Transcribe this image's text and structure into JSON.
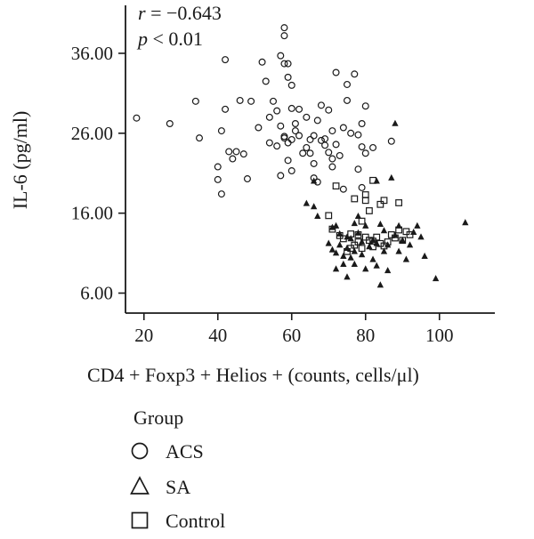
{
  "chart_data": {
    "type": "scatter",
    "title": "",
    "xlabel": "CD4 + Foxp3 + Helios + (counts, cells/μl)",
    "ylabel": "IL-6 (pg/ml)",
    "xlim": [
      15,
      115
    ],
    "ylim": [
      3.5,
      42.0
    ],
    "x_ticks": [
      20,
      40,
      60,
      80,
      100
    ],
    "y_ticks": [
      6.0,
      16.0,
      26.0,
      36.0
    ],
    "y_tick_labels": [
      "6.00",
      "16.00",
      "26.00",
      "36.00"
    ],
    "grid": false,
    "legend_position": "bottom-left",
    "annotation": {
      "r_symbol": "r",
      "r_value": " = −0.643",
      "p_symbol": "p",
      "p_value": " < 0.01"
    },
    "legend": {
      "title": "Group",
      "entries": [
        {
          "label": "ACS",
          "marker": "circle"
        },
        {
          "label": "SA",
          "marker": "triangle"
        },
        {
          "label": "Control",
          "marker": "square"
        }
      ]
    },
    "series": [
      {
        "name": "ACS",
        "marker": "circle",
        "color": "#1a1a1a",
        "points": [
          [
            18,
            27.9
          ],
          [
            27,
            27.2
          ],
          [
            34,
            30.0
          ],
          [
            35,
            25.4
          ],
          [
            40,
            21.8
          ],
          [
            40,
            20.2
          ],
          [
            41,
            18.4
          ],
          [
            41,
            26.3
          ],
          [
            42,
            35.2
          ],
          [
            42,
            29.0
          ],
          [
            43,
            23.7
          ],
          [
            44,
            22.8
          ],
          [
            45,
            23.7
          ],
          [
            46,
            30.1
          ],
          [
            47,
            23.4
          ],
          [
            48,
            20.3
          ],
          [
            49,
            30.0
          ],
          [
            51,
            26.7
          ],
          [
            52,
            34.9
          ],
          [
            53,
            32.5
          ],
          [
            54,
            28.0
          ],
          [
            54,
            24.8
          ],
          [
            55,
            30.0
          ],
          [
            56,
            24.4
          ],
          [
            56,
            28.8
          ],
          [
            57,
            26.9
          ],
          [
            57,
            20.7
          ],
          [
            57,
            35.7
          ],
          [
            58,
            39.2
          ],
          [
            58,
            38.2
          ],
          [
            58,
            34.7
          ],
          [
            58,
            25.6
          ],
          [
            58,
            25.4
          ],
          [
            59,
            33.0
          ],
          [
            59,
            22.6
          ],
          [
            59,
            34.7
          ],
          [
            59,
            24.8
          ],
          [
            60,
            29.1
          ],
          [
            60,
            25.2
          ],
          [
            60,
            32.0
          ],
          [
            60,
            21.3
          ],
          [
            61,
            27.2
          ],
          [
            61,
            26.3
          ],
          [
            62,
            29.0
          ],
          [
            62,
            25.7
          ],
          [
            63,
            23.5
          ],
          [
            64,
            24.2
          ],
          [
            64,
            28.0
          ],
          [
            65,
            25.2
          ],
          [
            65,
            23.5
          ],
          [
            66,
            25.7
          ],
          [
            66,
            22.2
          ],
          [
            66,
            20.4
          ],
          [
            67,
            19.9
          ],
          [
            67,
            27.6
          ],
          [
            68,
            29.5
          ],
          [
            68,
            25.1
          ],
          [
            69,
            25.3
          ],
          [
            69,
            24.5
          ],
          [
            70,
            23.6
          ],
          [
            70,
            28.9
          ],
          [
            71,
            22.8
          ],
          [
            71,
            21.8
          ],
          [
            71,
            26.3
          ],
          [
            72,
            33.6
          ],
          [
            72,
            24.6
          ],
          [
            73,
            23.2
          ],
          [
            74,
            26.7
          ],
          [
            74,
            19.0
          ],
          [
            75,
            32.1
          ],
          [
            75,
            30.1
          ],
          [
            76,
            26.0
          ],
          [
            77,
            33.4
          ],
          [
            78,
            25.8
          ],
          [
            78,
            21.5
          ],
          [
            79,
            24.3
          ],
          [
            79,
            27.2
          ],
          [
            79,
            19.2
          ],
          [
            80,
            29.4
          ],
          [
            80,
            23.5
          ],
          [
            82,
            24.2
          ],
          [
            87,
            25.0
          ]
        ]
      },
      {
        "name": "SA",
        "marker": "triangle",
        "color": "#1a1a1a",
        "points": [
          [
            66,
            20.0
          ],
          [
            64,
            17.2
          ],
          [
            66,
            16.8
          ],
          [
            67,
            15.6
          ],
          [
            70,
            12.2
          ],
          [
            71,
            11.4
          ],
          [
            71,
            14.2
          ],
          [
            72,
            11.0
          ],
          [
            72,
            9.0
          ],
          [
            73,
            13.4
          ],
          [
            73,
            12.0
          ],
          [
            74,
            10.6
          ],
          [
            74,
            9.6
          ],
          [
            75,
            8.0
          ],
          [
            75,
            11.6
          ],
          [
            75,
            13.0
          ],
          [
            76,
            10.4
          ],
          [
            76,
            12.8
          ],
          [
            77,
            9.6
          ],
          [
            77,
            11.2
          ],
          [
            78,
            13.5
          ],
          [
            78,
            15.6
          ],
          [
            79,
            12.4
          ],
          [
            79,
            10.8
          ],
          [
            80,
            9.0
          ],
          [
            80,
            14.4
          ],
          [
            81,
            11.8
          ],
          [
            82,
            12.6
          ],
          [
            82,
            10.2
          ],
          [
            83,
            9.4
          ],
          [
            83,
            12.2
          ],
          [
            84,
            14.6
          ],
          [
            84,
            7.0
          ],
          [
            85,
            11.2
          ],
          [
            85,
            13.8
          ],
          [
            86,
            12.0
          ],
          [
            86,
            8.8
          ],
          [
            87,
            20.4
          ],
          [
            88,
            13.2
          ],
          [
            88,
            27.2
          ],
          [
            89,
            11.2
          ],
          [
            89,
            14.4
          ],
          [
            90,
            12.6
          ],
          [
            91,
            10.2
          ],
          [
            92,
            12.0
          ],
          [
            93,
            13.6
          ],
          [
            94,
            14.4
          ],
          [
            95,
            13.0
          ],
          [
            96,
            10.6
          ],
          [
            99,
            7.8
          ],
          [
            107,
            14.8
          ],
          [
            83,
            20.0
          ],
          [
            77,
            14.7
          ],
          [
            72,
            14.4
          ]
        ]
      },
      {
        "name": "Control",
        "marker": "square",
        "color": "#1a1a1a",
        "points": [
          [
            70,
            15.7
          ],
          [
            71,
            14.0
          ],
          [
            72,
            19.4
          ],
          [
            73,
            13.2
          ],
          [
            74,
            12.8
          ],
          [
            75,
            11.2
          ],
          [
            76,
            11.6
          ],
          [
            77,
            12.0
          ],
          [
            77,
            17.8
          ],
          [
            78,
            12.4
          ],
          [
            78,
            13.3
          ],
          [
            79,
            15.0
          ],
          [
            79,
            11.6
          ],
          [
            80,
            18.3
          ],
          [
            80,
            13.0
          ],
          [
            80,
            17.6
          ],
          [
            81,
            12.6
          ],
          [
            81,
            16.3
          ],
          [
            82,
            11.8
          ],
          [
            82,
            12.5
          ],
          [
            83,
            13.0
          ],
          [
            84,
            12.2
          ],
          [
            84,
            17.1
          ],
          [
            85,
            11.9
          ],
          [
            85,
            17.6
          ],
          [
            86,
            12.4
          ],
          [
            87,
            13.3
          ],
          [
            88,
            12.9
          ],
          [
            89,
            17.3
          ],
          [
            89,
            13.9
          ],
          [
            90,
            12.6
          ],
          [
            91,
            13.7
          ],
          [
            92,
            13.3
          ],
          [
            82,
            20.1
          ],
          [
            76,
            13.4
          ]
        ]
      }
    ]
  }
}
